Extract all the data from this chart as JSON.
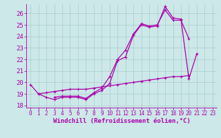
{
  "xlabel": "Windchill (Refroidissement éolien,°C)",
  "bg_color": "#cce8e8",
  "grid_color": "#aacccc",
  "line_color": "#aa00aa",
  "xlim": [
    -0.5,
    23.5
  ],
  "ylim": [
    17.8,
    26.8
  ],
  "yticks": [
    18,
    19,
    20,
    21,
    22,
    23,
    24,
    25,
    26
  ],
  "xticks": [
    0,
    1,
    2,
    3,
    4,
    5,
    6,
    7,
    8,
    9,
    10,
    11,
    12,
    13,
    14,
    15,
    16,
    17,
    18,
    19,
    20,
    21,
    22,
    23
  ],
  "line1_y": [
    19.8,
    19.0,
    18.7,
    18.5,
    18.7,
    18.7,
    18.7,
    18.5,
    19.0,
    19.3,
    19.9,
    21.9,
    22.2,
    24.1,
    25.0,
    24.8,
    24.9,
    26.6,
    25.6,
    25.5,
    20.3,
    22.5,
    null,
    null
  ],
  "line2_y": [
    null,
    null,
    null,
    18.7,
    18.8,
    18.8,
    18.8,
    18.6,
    19.1,
    19.5,
    20.5,
    22.0,
    22.8,
    24.2,
    25.1,
    24.9,
    25.0,
    26.3,
    25.4,
    25.4,
    23.8,
    null,
    null,
    null
  ],
  "line3_y": [
    null,
    19.0,
    19.1,
    19.2,
    19.3,
    19.4,
    19.4,
    19.4,
    19.5,
    19.6,
    19.7,
    19.8,
    19.9,
    20.0,
    20.1,
    20.2,
    20.3,
    20.4,
    20.5,
    20.5,
    20.6,
    null,
    null,
    null
  ],
  "xlabel_fontsize": 6.5,
  "ytick_fontsize": 6.5,
  "xtick_fontsize": 5.5,
  "linewidth": 0.9,
  "markersize": 3.5
}
